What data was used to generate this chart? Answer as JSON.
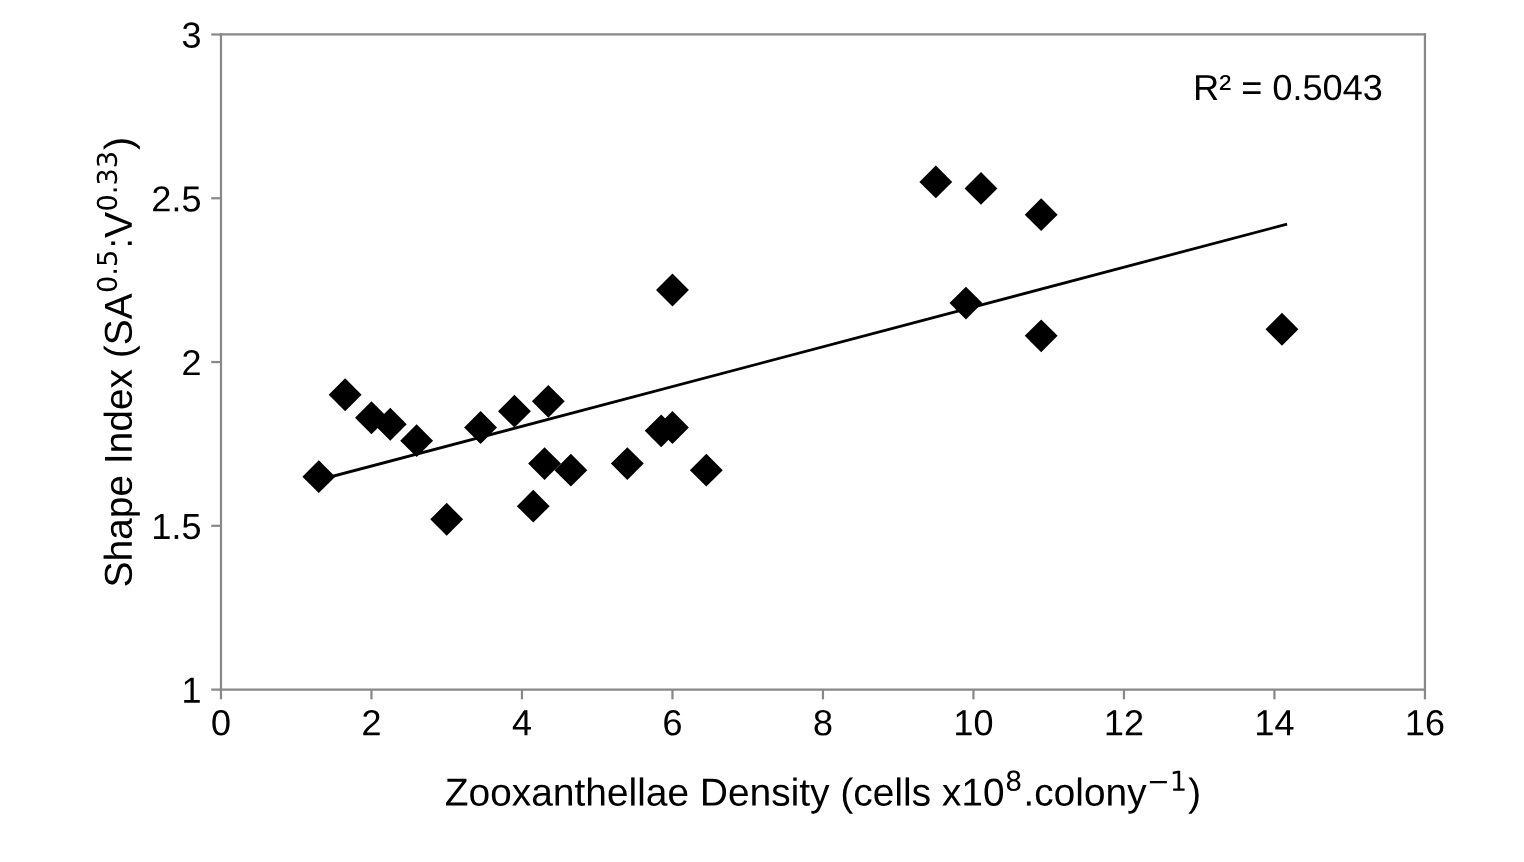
{
  "chart_data": {
    "type": "scatter",
    "xlabel": "Zooxanthellae Density (cells x10$^{8}$.colony$^{−1}$)",
    "ylabel": "Shape Index (SA$^{0.5}$:V$^{0.33}$)",
    "xlim": [
      0,
      16
    ],
    "xticks": [
      0,
      2,
      4,
      6,
      8,
      10,
      12,
      14,
      16
    ],
    "ylim": [
      1,
      3
    ],
    "yticks": [
      1,
      1.5,
      2,
      2.5,
      3
    ],
    "grid": false,
    "legend": false,
    "series": [
      {
        "color": "#000000",
        "marker": "diamond",
        "x": [
          1.3,
          1.65,
          2.0,
          2.25,
          2.6,
          3.0,
          3.45,
          3.9,
          4.15,
          4.3,
          4.35,
          4.65,
          5.4,
          5.85,
          6.0,
          6.0,
          6.45,
          9.5,
          9.9,
          10.1,
          10.9,
          10.9,
          14.1
        ],
        "values": [
          1.65,
          1.9,
          1.83,
          1.81,
          1.76,
          1.52,
          1.8,
          1.85,
          1.56,
          1.69,
          1.88,
          1.67,
          1.69,
          1.79,
          1.8,
          2.22,
          1.67,
          2.55,
          2.18,
          2.53,
          2.45,
          2.08,
          2.1
        ]
      },
      {
        "type": "line",
        "color": "#000000",
        "line_style": "solid",
        "x": [
          1.3,
          14.15
        ],
        "values": [
          1.64,
          2.42
        ]
      }
    ],
    "annotations": [
      "R² = 0.5043"
    ]
  }
}
